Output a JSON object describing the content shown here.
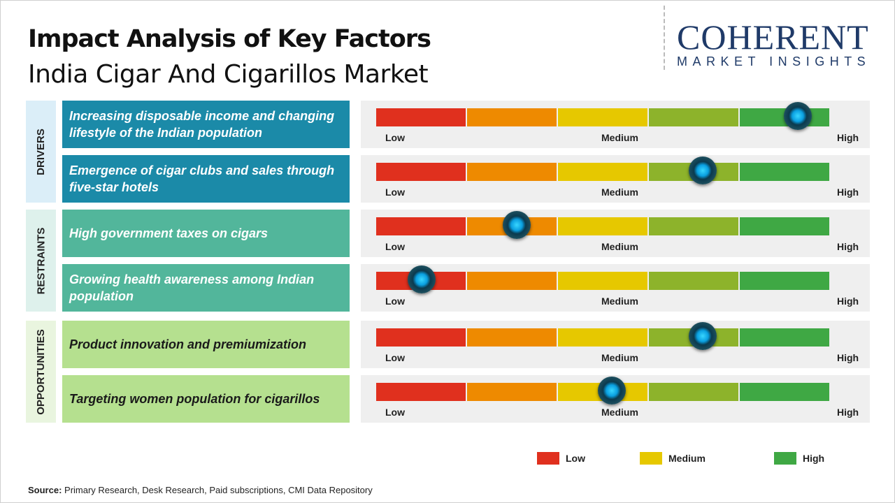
{
  "title": "Impact Analysis of Key Factors",
  "subtitle": "India Cigar And Cigarillos Market",
  "logo": {
    "main": "COHERENT",
    "sub": "MARKET INSIGHTS"
  },
  "colors": {
    "low": "#e0301e",
    "orange": "#ee8a00",
    "medium": "#e6c800",
    "olive": "#8db32b",
    "high": "#3fa844",
    "drivers": "#1b8aa8",
    "restraints": "#52b69b",
    "opportunities": "#b5e08f"
  },
  "scale": {
    "low": "Low",
    "medium": "Medium",
    "high": "High"
  },
  "chart_data": {
    "type": "table",
    "scale_range": [
      0,
      1
    ],
    "sections": [
      {
        "name": "DRIVERS",
        "items": [
          {
            "label": "Increasing disposable income and changing lifestyle of the Indian population",
            "impact": 0.93
          },
          {
            "label": "Emergence of cigar clubs and sales through five-star hotels",
            "impact": 0.72
          }
        ]
      },
      {
        "name": "RESTRAINTS",
        "items": [
          {
            "label": "High government taxes on cigars",
            "impact": 0.31
          },
          {
            "label": "Growing health awareness among Indian population",
            "impact": 0.1
          }
        ]
      },
      {
        "name": "OPPORTUNITIES",
        "items": [
          {
            "label": "Product innovation and premiumization",
            "impact": 0.72
          },
          {
            "label": "Targeting women population for cigarillos",
            "impact": 0.52
          }
        ]
      }
    ]
  },
  "legend": [
    {
      "label": "Low",
      "color": "#e0301e"
    },
    {
      "label": "Medium",
      "color": "#e6c800"
    },
    {
      "label": "High",
      "color": "#3fa844"
    }
  ],
  "source": {
    "label": "Source:",
    "text": " Primary Research, Desk Research, Paid subscriptions, CMI Data Repository"
  }
}
